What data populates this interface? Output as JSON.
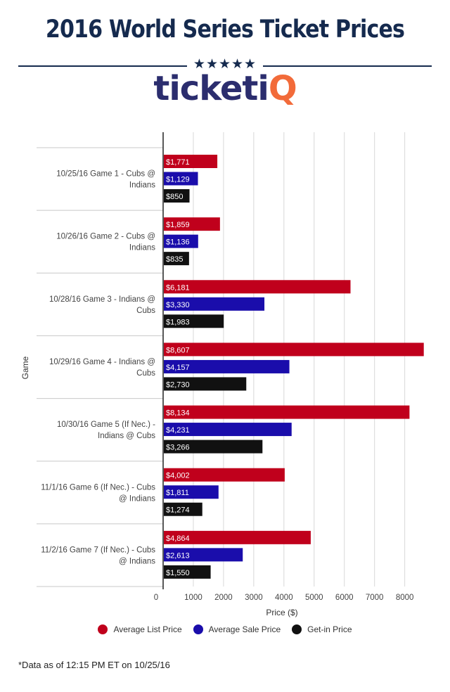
{
  "header": {
    "title": "2016 World Series Ticket Prices",
    "stars": "★★★★★",
    "logo_main": "ticketi",
    "logo_accent": "Q"
  },
  "colors": {
    "title": "#152a4e",
    "logo": "#2b2d6e",
    "logo_accent": "#f26b3a"
  },
  "chart_data": {
    "type": "bar",
    "orientation": "horizontal",
    "categories": [
      [
        "10/25/16 Game 1 - Cubs @",
        "Indians"
      ],
      [
        "10/26/16 Game 2 - Cubs @",
        "Indians"
      ],
      [
        "10/28/16 Game 3 - Indians @",
        "Cubs"
      ],
      [
        "10/29/16 Game 4 - Indians @",
        "Cubs"
      ],
      [
        "10/30/16 Game 5 (If Nec.) -",
        "Indians @ Cubs"
      ],
      [
        "11/1/16 Game 6 (If Nec.) - Cubs",
        "@ Indians"
      ],
      [
        "11/2/16 Game 7 (If Nec.) - Cubs",
        "@ Indians"
      ]
    ],
    "series": [
      {
        "name": "Average List Price",
        "color": "#c0001c",
        "values": [
          1771,
          1859,
          6181,
          8607,
          8134,
          4002,
          4864
        ],
        "labels": [
          "$1,771",
          "$1,859",
          "$6,181",
          "$8,607",
          "$8,134",
          "$4,002",
          "$4,864"
        ]
      },
      {
        "name": "Average Sale Price",
        "color": "#1a0dab",
        "values": [
          1129,
          1136,
          3330,
          4157,
          4231,
          1811,
          2613
        ],
        "labels": [
          "$1,129",
          "$1,136",
          "$3,330",
          "$4,157",
          "$4,231",
          "$1,811",
          "$2,613"
        ]
      },
      {
        "name": "Get-in Price",
        "color": "#111111",
        "values": [
          850,
          835,
          1983,
          2730,
          3266,
          1274,
          1550
        ],
        "labels": [
          "$850",
          "$835",
          "$1,983",
          "$2,730",
          "$3,266",
          "$1,274",
          "$1,550"
        ]
      }
    ],
    "xlabel": "Price ($)",
    "ylabel": "Game",
    "xlim": [
      0,
      8800
    ],
    "xticks": [
      0,
      1000,
      2000,
      3000,
      4000,
      5000,
      6000,
      7000,
      8000
    ],
    "grid": true,
    "legend_position": "bottom"
  },
  "footnote": "*Data as of 12:15 PM ET on 10/25/16"
}
